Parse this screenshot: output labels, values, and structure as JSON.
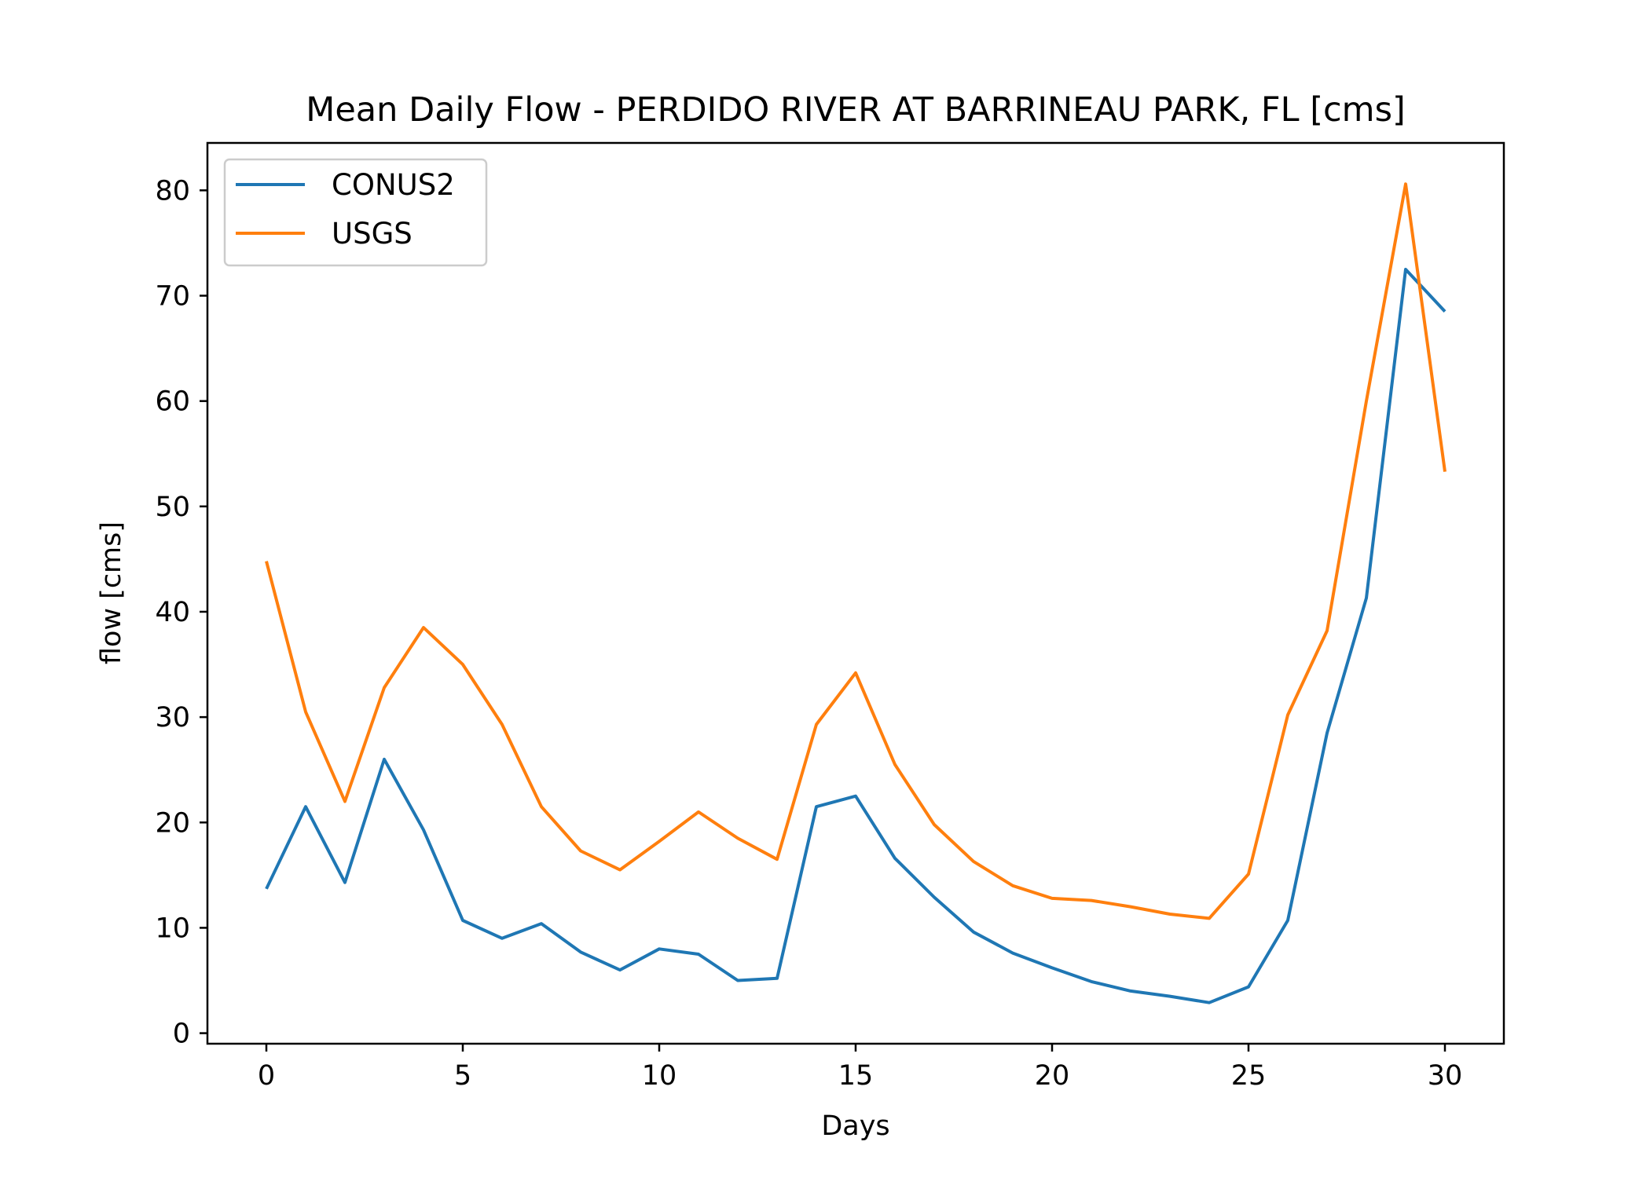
{
  "chart_data": {
    "type": "line",
    "title": "Mean Daily Flow - PERDIDO RIVER AT BARRINEAU PARK, FL [cms]",
    "xlabel": "Days",
    "ylabel": "flow [cms]",
    "xlim": [
      -1.5,
      31.5
    ],
    "ylim": [
      -1,
      84.5
    ],
    "xticks": [
      0,
      5,
      10,
      15,
      20,
      25,
      30
    ],
    "yticks": [
      0,
      10,
      20,
      30,
      40,
      50,
      60,
      70,
      80
    ],
    "grid": false,
    "legend_position": "upper-left",
    "x": [
      0,
      1,
      2,
      3,
      4,
      5,
      6,
      7,
      8,
      9,
      10,
      11,
      12,
      13,
      14,
      15,
      16,
      17,
      18,
      19,
      20,
      21,
      22,
      23,
      24,
      25,
      26,
      27,
      28,
      29,
      30
    ],
    "series": [
      {
        "name": "CONUS2",
        "color": "#1f77b4",
        "values": [
          13.7,
          21.5,
          14.3,
          26.0,
          19.3,
          10.7,
          9.0,
          10.4,
          7.7,
          6.0,
          8.0,
          7.5,
          5.0,
          5.2,
          21.5,
          22.5,
          16.6,
          12.9,
          9.6,
          7.6,
          6.2,
          4.9,
          4.0,
          3.5,
          2.9,
          4.4,
          10.7,
          28.5,
          41.3,
          72.5,
          68.5
        ]
      },
      {
        "name": "USGS",
        "color": "#ff7f0e",
        "values": [
          44.8,
          30.5,
          22.0,
          32.8,
          38.5,
          35.0,
          29.3,
          21.5,
          17.3,
          15.5,
          18.2,
          21.0,
          18.5,
          16.5,
          29.3,
          34.2,
          25.5,
          19.8,
          16.3,
          14.0,
          12.8,
          12.6,
          12.0,
          11.3,
          10.9,
          15.1,
          30.2,
          38.2,
          60.0,
          80.6,
          53.3
        ]
      }
    ]
  }
}
